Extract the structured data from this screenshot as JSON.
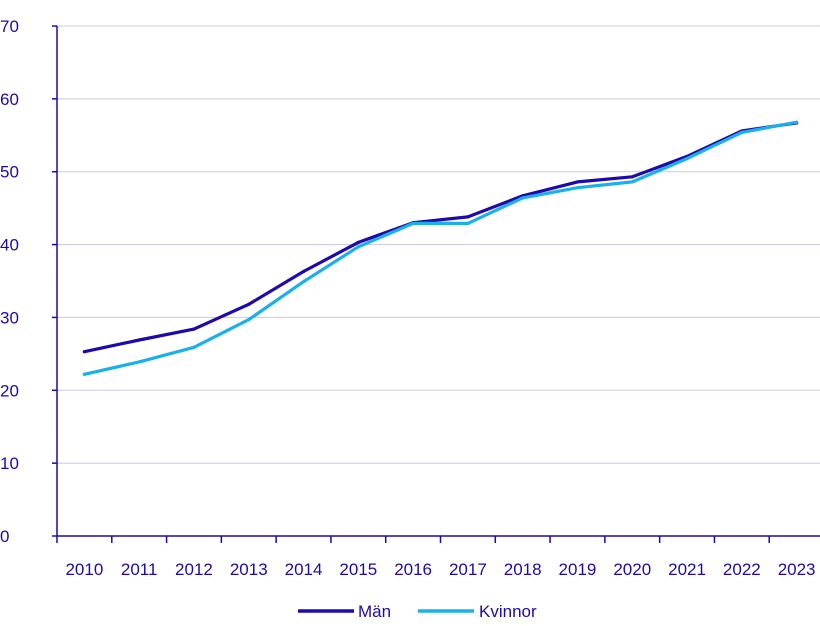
{
  "chart_data": {
    "type": "line",
    "title": "",
    "xlabel": "",
    "ylabel": "",
    "categories": [
      "2010",
      "2011",
      "2012",
      "2013",
      "2014",
      "2015",
      "2016",
      "2017",
      "2018",
      "2019",
      "2020",
      "2021",
      "2022",
      "2023"
    ],
    "ylim": [
      0,
      70
    ],
    "yticks": [
      "0",
      "10",
      "20",
      "30",
      "40",
      "50",
      "60",
      "70"
    ],
    "grid": true,
    "legend": "bottom",
    "series": [
      {
        "name": "Män",
        "color": "#1e0aa8",
        "values": [
          25.3,
          26.9,
          28.4,
          31.8,
          36.3,
          40.3,
          43.0,
          43.8,
          46.7,
          48.6,
          49.3,
          52.1,
          55.6,
          56.7
        ]
      },
      {
        "name": "Kvinnor",
        "color": "#1ab0e8",
        "values": [
          22.2,
          23.9,
          25.9,
          29.7,
          34.9,
          39.7,
          42.9,
          42.9,
          46.4,
          47.8,
          48.6,
          51.8,
          55.4,
          56.8
        ]
      }
    ]
  },
  "colors": {
    "axis": "#1e0aa8",
    "grid": "#c8c8e6",
    "text": "#1e0aa8"
  }
}
